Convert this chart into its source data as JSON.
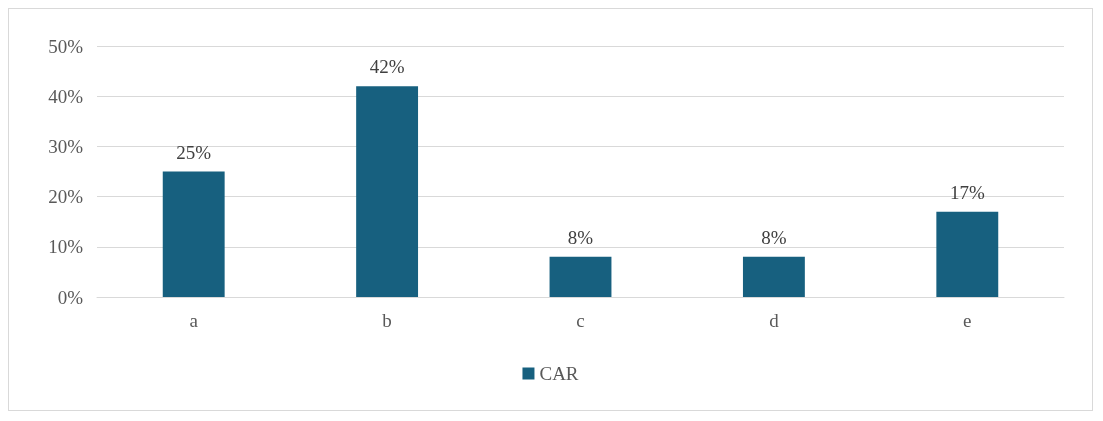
{
  "chart_data": {
    "type": "bar",
    "categories": [
      "a",
      "b",
      "c",
      "d",
      "e"
    ],
    "series": [
      {
        "name": "CAR",
        "color": "#17607f",
        "values": [
          25,
          42,
          8,
          8,
          17
        ],
        "value_labels": [
          "25%",
          "42%",
          "8%",
          "8%",
          "17%"
        ]
      }
    ],
    "ylim": [
      0,
      50
    ],
    "yticks": [
      {
        "value": 0,
        "label": "0%"
      },
      {
        "value": 10,
        "label": "10%"
      },
      {
        "value": 20,
        "label": "20%"
      },
      {
        "value": 30,
        "label": "30%"
      },
      {
        "value": 40,
        "label": "40%"
      },
      {
        "value": 50,
        "label": "50%"
      }
    ],
    "grid": "y",
    "legend": "bottom"
  }
}
